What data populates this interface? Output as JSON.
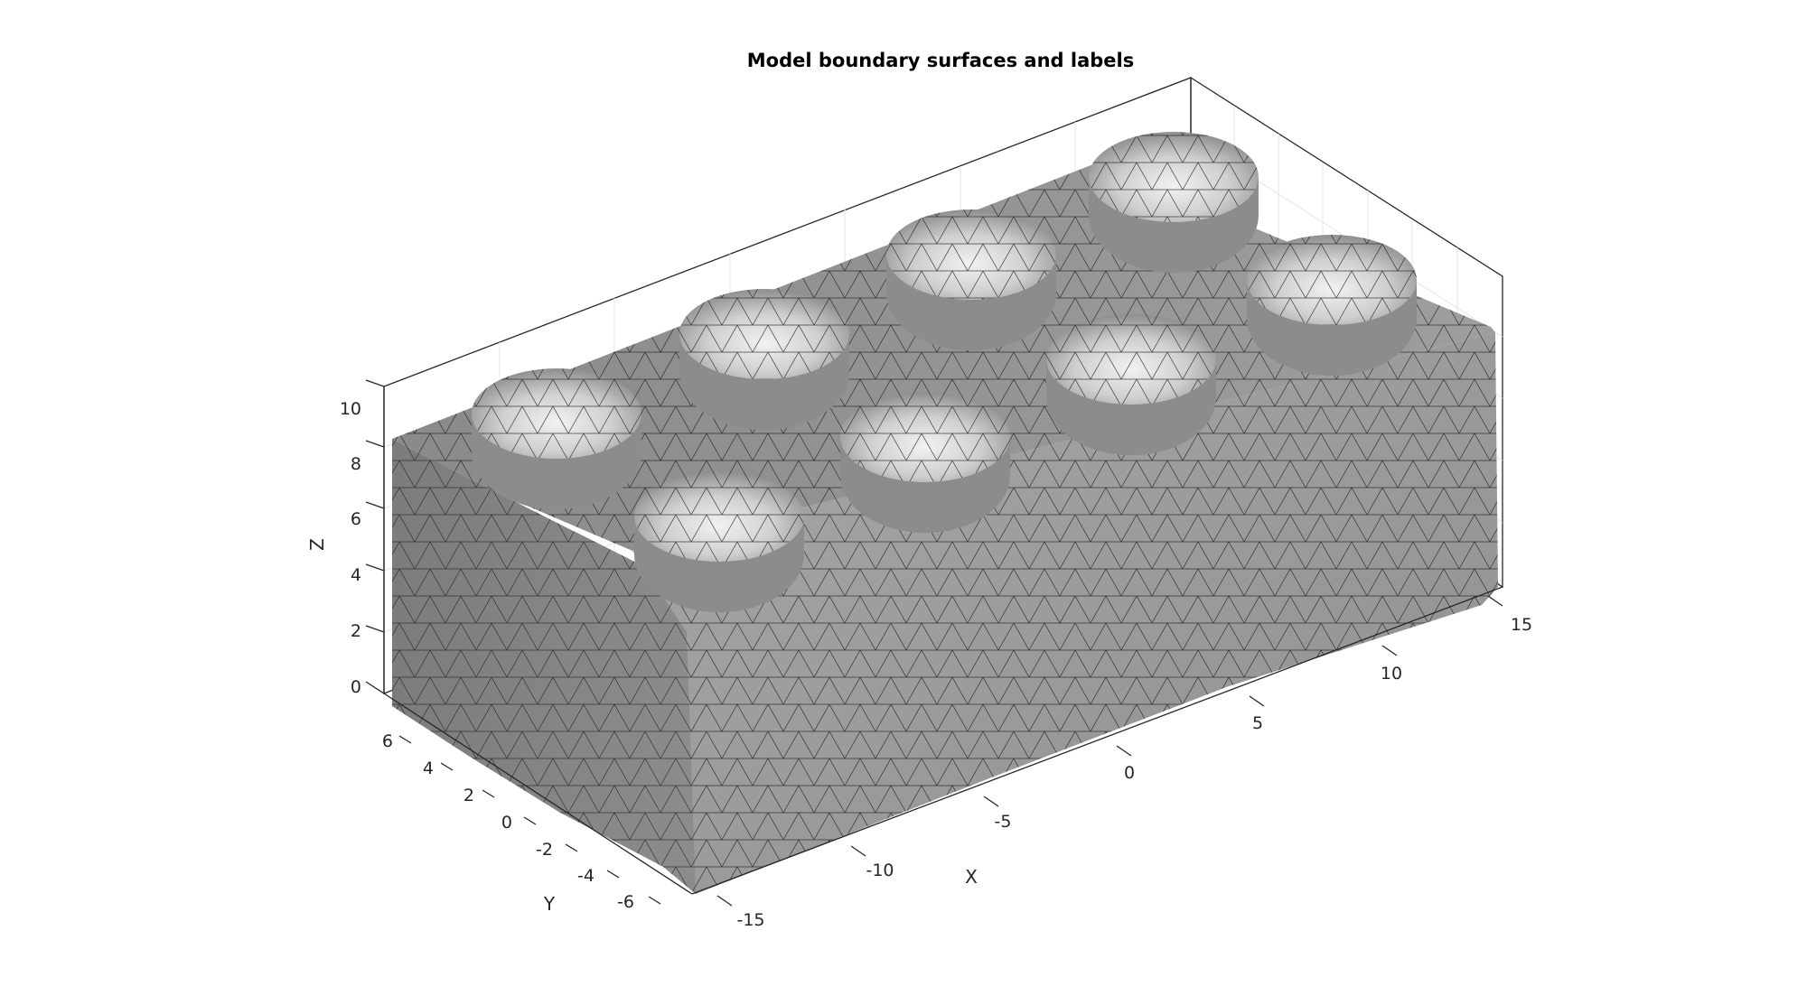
{
  "figure": {
    "title": "Model boundary surfaces and labels",
    "background": "#ffffff",
    "surface_color": "#9a9a9a",
    "edge_color": "#1a1a1a"
  },
  "axes": {
    "x": {
      "label": "X",
      "ticks": [
        "-15",
        "-10",
        "-5",
        "0",
        "5",
        "10",
        "15"
      ]
    },
    "y": {
      "label": "Y",
      "ticks": [
        "-6",
        "-4",
        "-2",
        "0",
        "2",
        "4",
        "6"
      ]
    },
    "z": {
      "label": "Z",
      "ticks": [
        "0",
        "2",
        "4",
        "6",
        "8",
        "10"
      ]
    }
  },
  "model": {
    "type": "brick",
    "studs_rows": 2,
    "studs_cols": 4,
    "mesh": "triangulated surface"
  }
}
